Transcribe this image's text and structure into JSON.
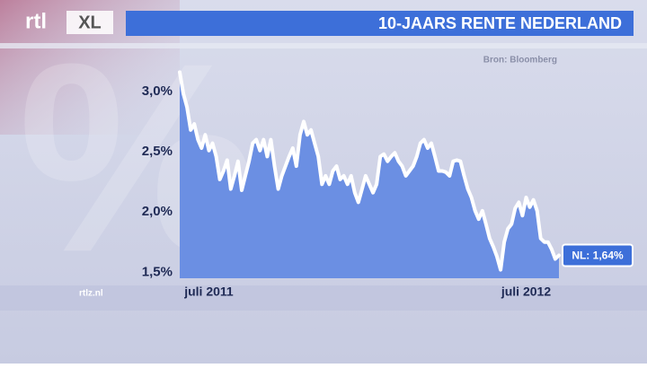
{
  "logo": {
    "main": "rtl",
    "sub": "XL"
  },
  "footer": "rtlz.nl",
  "watermark": "%",
  "chart_data": {
    "type": "area",
    "title": "10-JAARS RENTE NEDERLAND",
    "source": "Bron: Bloomberg",
    "annotation": "NL: 1,64%",
    "color": "#6b8fe3",
    "line_color": "#ffffff",
    "grid": false,
    "ylim": [
      1.45,
      3.2
    ],
    "yticks": [
      {
        "value": 1.5,
        "label": "1,5%"
      },
      {
        "value": 2.0,
        "label": "2,0%"
      },
      {
        "value": 2.5,
        "label": "2,5%"
      },
      {
        "value": 3.0,
        "label": "3,0%"
      }
    ],
    "categories": [
      null,
      null,
      null,
      null,
      null,
      null,
      null,
      null,
      "juli 2011",
      null,
      null,
      null,
      null,
      null,
      null,
      null,
      null,
      null,
      null,
      null,
      null,
      null,
      null,
      null,
      null,
      null,
      null,
      null,
      null,
      null,
      null,
      null,
      null,
      null,
      null,
      null,
      null,
      null,
      null,
      null,
      null,
      null,
      null,
      null,
      null,
      null,
      null,
      null,
      null,
      null,
      null,
      null,
      null,
      null,
      null,
      null,
      null,
      null,
      null,
      null,
      null,
      null,
      null,
      null,
      null,
      null,
      null,
      null,
      null,
      null,
      null,
      null,
      null,
      null,
      null,
      null,
      null,
      null,
      null,
      null,
      null,
      null,
      null,
      null,
      null,
      null,
      null,
      null,
      null,
      null,
      null,
      null,
      null,
      null,
      null,
      "juli 2012",
      null,
      null,
      null,
      null,
      null,
      null,
      null,
      null,
      null
    ],
    "values": [
      3.16,
      2.98,
      2.87,
      2.68,
      2.73,
      2.6,
      2.53,
      2.64,
      2.51,
      2.57,
      2.46,
      2.27,
      2.34,
      2.43,
      2.19,
      2.3,
      2.42,
      2.18,
      2.3,
      2.42,
      2.57,
      2.6,
      2.51,
      2.6,
      2.46,
      2.6,
      2.38,
      2.19,
      2.3,
      2.38,
      2.46,
      2.53,
      2.38,
      2.64,
      2.75,
      2.64,
      2.68,
      2.57,
      2.46,
      2.23,
      2.3,
      2.23,
      2.34,
      2.38,
      2.27,
      2.3,
      2.23,
      2.3,
      2.16,
      2.08,
      2.19,
      2.3,
      2.23,
      2.16,
      2.23,
      2.46,
      2.48,
      2.42,
      2.46,
      2.49,
      2.42,
      2.38,
      2.3,
      2.34,
      2.38,
      2.46,
      2.57,
      2.6,
      2.53,
      2.57,
      2.46,
      2.34,
      2.34,
      2.33,
      2.3,
      2.42,
      2.43,
      2.42,
      2.3,
      2.19,
      2.12,
      2.01,
      1.94,
      2.01,
      1.9,
      1.78,
      1.71,
      1.63,
      1.52,
      1.75,
      1.86,
      1.9,
      2.03,
      2.08,
      1.97,
      2.12,
      2.04,
      2.1,
      2.01,
      1.78,
      1.75,
      1.75,
      1.69,
      1.61,
      1.64
    ]
  }
}
